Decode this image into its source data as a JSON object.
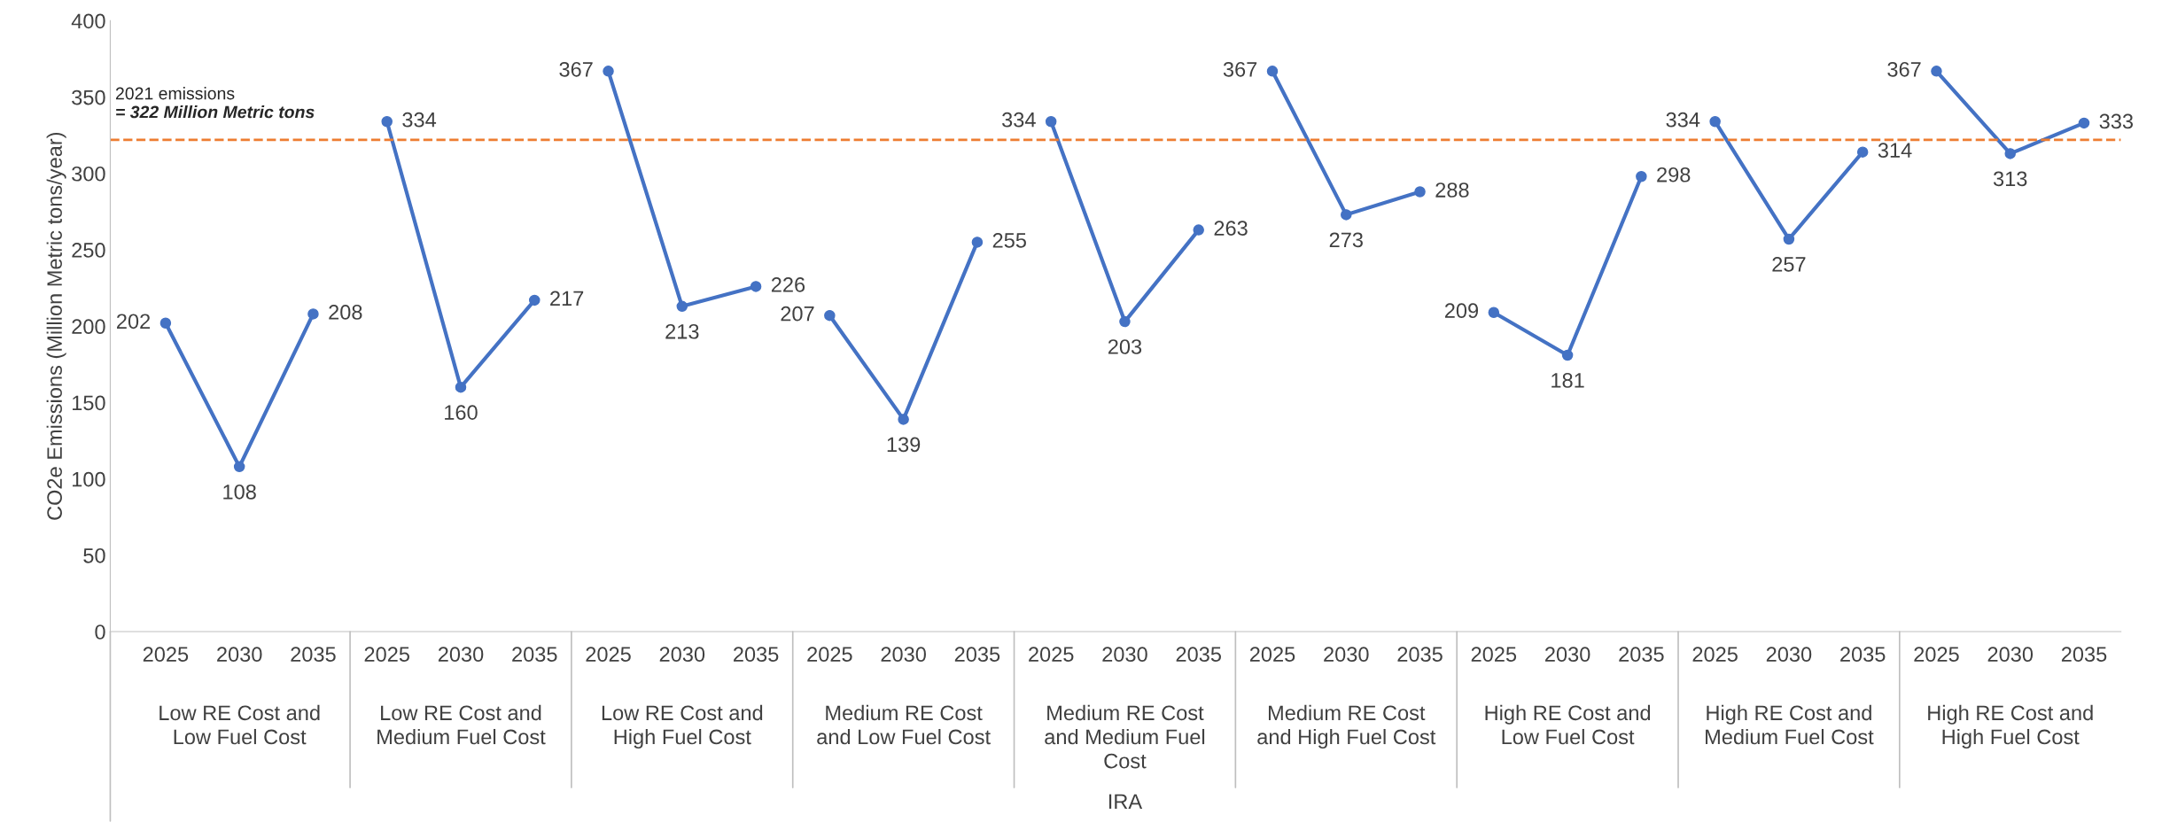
{
  "chart_data": {
    "type": "line",
    "ylabel": "CO2e Emissions (Million Metric tons/year)",
    "categories": [
      "2025",
      "2030",
      "2035",
      "2025",
      "2030",
      "2035",
      "2025",
      "2030",
      "2035",
      "2025",
      "2030",
      "2035",
      "2025",
      "2030",
      "2035",
      "2025",
      "2030",
      "2035",
      "2025",
      "2030",
      "2035",
      "2025",
      "2030",
      "2035",
      "2025",
      "2030",
      "2035"
    ],
    "series": [
      {
        "color": "#4472c4",
        "values": [
          202,
          108,
          208,
          null,
          null,
          null,
          null,
          null,
          null,
          null,
          null,
          null,
          null,
          null,
          null,
          null,
          null,
          null,
          null,
          null,
          null,
          null,
          null,
          null,
          null,
          null,
          null
        ]
      },
      {
        "color": "#4472c4",
        "values": [
          null,
          null,
          null,
          334,
          160,
          217,
          null,
          null,
          null,
          null,
          null,
          null,
          null,
          null,
          null,
          null,
          null,
          null,
          null,
          null,
          null,
          null,
          null,
          null,
          null,
          null,
          null
        ]
      },
      {
        "color": "#4472c4",
        "values": [
          null,
          null,
          null,
          null,
          null,
          null,
          367,
          213,
          226,
          null,
          null,
          null,
          null,
          null,
          null,
          null,
          null,
          null,
          null,
          null,
          null,
          null,
          null,
          null,
          null,
          null,
          null
        ]
      },
      {
        "color": "#4472c4",
        "values": [
          null,
          null,
          null,
          null,
          null,
          null,
          null,
          null,
          null,
          207,
          139,
          255,
          null,
          null,
          null,
          null,
          null,
          null,
          null,
          null,
          null,
          null,
          null,
          null,
          null,
          null,
          null
        ]
      },
      {
        "color": "#4472c4",
        "values": [
          null,
          null,
          null,
          null,
          null,
          null,
          null,
          null,
          null,
          null,
          null,
          null,
          334,
          203,
          263,
          null,
          null,
          null,
          null,
          null,
          null,
          null,
          null,
          null,
          null,
          null,
          null
        ]
      },
      {
        "color": "#4472c4",
        "values": [
          null,
          null,
          null,
          null,
          null,
          null,
          null,
          null,
          null,
          null,
          null,
          null,
          null,
          null,
          null,
          367,
          273,
          288,
          null,
          null,
          null,
          null,
          null,
          null,
          null,
          null,
          null
        ]
      },
      {
        "color": "#4472c4",
        "values": [
          null,
          null,
          null,
          null,
          null,
          null,
          null,
          null,
          null,
          null,
          null,
          null,
          null,
          null,
          null,
          null,
          null,
          null,
          209,
          181,
          298,
          null,
          null,
          null,
          null,
          null,
          null
        ]
      },
      {
        "color": "#4472c4",
        "values": [
          null,
          null,
          null,
          null,
          null,
          null,
          null,
          null,
          null,
          null,
          null,
          null,
          null,
          null,
          null,
          null,
          null,
          null,
          null,
          null,
          null,
          334,
          257,
          314,
          null,
          null,
          null
        ]
      },
      {
        "color": "#4472c4",
        "values": [
          null,
          null,
          null,
          null,
          null,
          null,
          null,
          null,
          null,
          null,
          null,
          null,
          null,
          null,
          null,
          null,
          null,
          null,
          null,
          null,
          null,
          null,
          null,
          null,
          367,
          313,
          333
        ]
      }
    ],
    "ylim": [
      0,
      400
    ],
    "yticks": [
      0,
      50,
      100,
      150,
      200,
      250,
      300,
      350,
      400
    ],
    "grid": false,
    "legend": false,
    "marker": "circle",
    "line_style": "solid",
    "data_labels": true,
    "ref_lines": [
      {
        "axis": "y",
        "value": 322,
        "label": "2021 emissions\n= 322 Million Metric tons",
        "color": "#ed7d31",
        "line_style": "dashed"
      }
    ],
    "annotations": [
      "Low RE Cost and\nLow Fuel Cost",
      "Low RE Cost and\nMedium Fuel Cost",
      "Low RE Cost and\nHigh Fuel Cost",
      "Medium RE Cost\nand Low Fuel Cost",
      "Medium RE Cost\nand Medium Fuel\nCost",
      "Medium RE Cost\nand High Fuel Cost",
      "High RE Cost and\nLow Fuel Cost",
      "High RE Cost and\nMedium Fuel Cost",
      "High RE Cost and\nHigh Fuel Cost",
      "IRA"
    ]
  }
}
